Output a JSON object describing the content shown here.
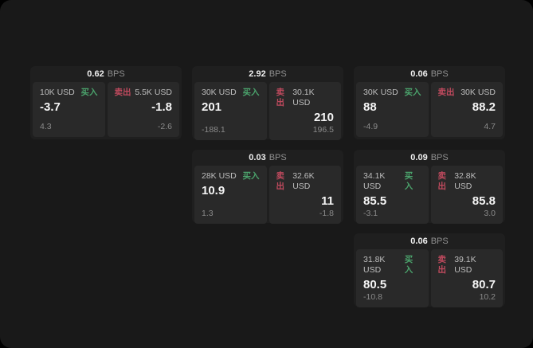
{
  "labels": {
    "bps_suffix": "BPS",
    "buy": "买入",
    "sell": "卖出"
  },
  "colors": {
    "buy_green": "#4ba36c",
    "sell_red": "#c04a5e",
    "window_bg": "#191919",
    "card_bg": "#1f1f1f",
    "panel_bg": "#292929",
    "text_primary": "#f5f5f5",
    "text_secondary": "#bdbdbd",
    "text_muted": "#8a8a8a"
  },
  "cards": [
    {
      "bps": "0.62",
      "buy": {
        "amount": "10K USD",
        "price": "-3.7",
        "delta": "4.3"
      },
      "sell": {
        "amount": "5.5K USD",
        "price": "-1.8",
        "delta": "-2.6"
      }
    },
    {
      "bps": "2.92",
      "buy": {
        "amount": "30K USD",
        "price": "201",
        "delta": "-188.1"
      },
      "sell": {
        "amount": "30.1K USD",
        "price": "210",
        "delta": "196.5"
      }
    },
    {
      "bps": "0.06",
      "buy": {
        "amount": "30K USD",
        "price": "88",
        "delta": "-4.9"
      },
      "sell": {
        "amount": "30K USD",
        "price": "88.2",
        "delta": "4.7"
      }
    },
    {
      "bps": "0.03",
      "buy": {
        "amount": "28K USD",
        "price": "10.9",
        "delta": "1.3"
      },
      "sell": {
        "amount": "32.6K USD",
        "price": "11",
        "delta": "-1.8"
      }
    },
    {
      "bps": "0.09",
      "buy": {
        "amount": "34.1K USD",
        "price": "85.5",
        "delta": "-3.1"
      },
      "sell": {
        "amount": "32.8K USD",
        "price": "85.8",
        "delta": "3.0"
      }
    },
    {
      "bps": "0.06",
      "buy": {
        "amount": "31.8K USD",
        "price": "80.5",
        "delta": "-10.8"
      },
      "sell": {
        "amount": "39.1K USD",
        "price": "80.7",
        "delta": "10.2"
      }
    }
  ]
}
